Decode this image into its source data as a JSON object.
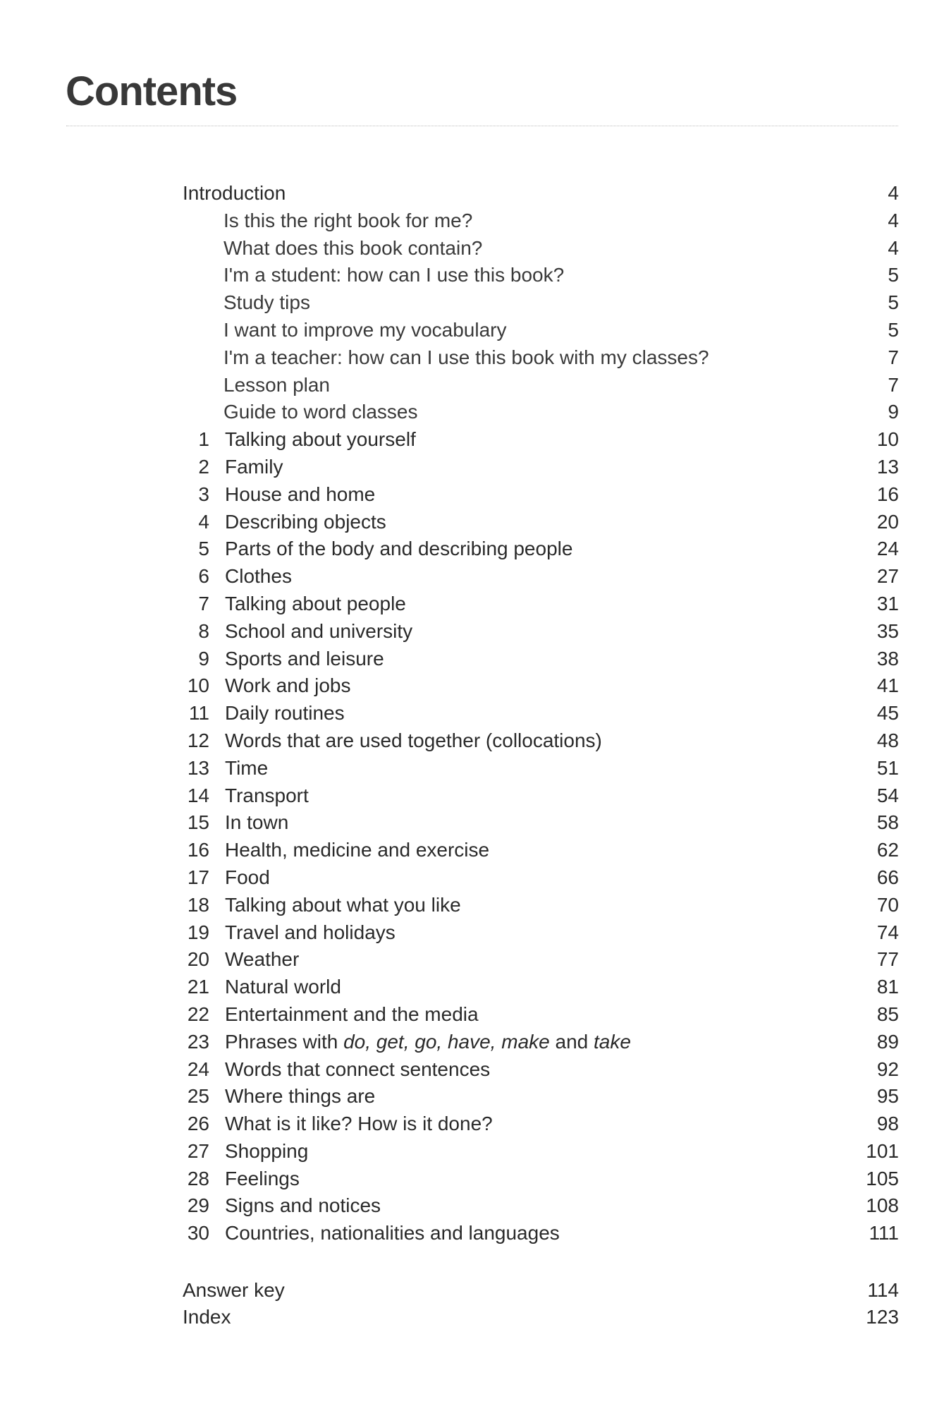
{
  "title": "Contents",
  "introduction": {
    "label": "Introduction",
    "page": "4"
  },
  "intro_items": [
    {
      "label": "Is this the right book for me?",
      "page": "4"
    },
    {
      "label": "What does this book contain?",
      "page": "4"
    },
    {
      "label": "I'm a student: how can I use this book?",
      "page": "5"
    },
    {
      "label": "Study tips",
      "page": "5"
    },
    {
      "label": "I want to improve my vocabulary",
      "page": "5"
    },
    {
      "label": "I'm a teacher: how can I use this book with my classes?",
      "page": "7"
    },
    {
      "label": "Lesson plan",
      "page": "7"
    },
    {
      "label": "Guide to word classes",
      "page": "9"
    }
  ],
  "units": [
    {
      "num": "1",
      "label": "Talking about yourself",
      "page": "10"
    },
    {
      "num": "2",
      "label": "Family",
      "page": "13"
    },
    {
      "num": "3",
      "label": "House and home",
      "page": "16"
    },
    {
      "num": "4",
      "label": "Describing objects",
      "page": "20"
    },
    {
      "num": "5",
      "label": "Parts of the body and describing people",
      "page": "24"
    },
    {
      "num": "6",
      "label": "Clothes",
      "page": "27"
    },
    {
      "num": "7",
      "label": "Talking about people",
      "page": "31"
    },
    {
      "num": "8",
      "label": "School and university",
      "page": "35"
    },
    {
      "num": "9",
      "label": "Sports and leisure",
      "page": "38"
    },
    {
      "num": "10",
      "label": "Work and jobs",
      "page": "41"
    },
    {
      "num": "11",
      "label": "Daily routines",
      "page": "45"
    },
    {
      "num": "12",
      "label": "Words that are used together (collocations)",
      "page": "48"
    },
    {
      "num": "13",
      "label": "Time",
      "page": "51"
    },
    {
      "num": "14",
      "label": "Transport",
      "page": "54"
    },
    {
      "num": "15",
      "label": "In town",
      "page": "58"
    },
    {
      "num": "16",
      "label": "Health, medicine and exercise",
      "page": "62"
    },
    {
      "num": "17",
      "label": "Food",
      "page": "66"
    },
    {
      "num": "18",
      "label": "Talking about what you like",
      "page": "70"
    },
    {
      "num": "19",
      "label": "Travel and holidays",
      "page": "74"
    },
    {
      "num": "20",
      "label": "Weather",
      "page": "77"
    },
    {
      "num": "21",
      "label": "Natural world",
      "page": "81"
    },
    {
      "num": "22",
      "label": "Entertainment and the media",
      "page": "85"
    },
    {
      "num": "23",
      "label": "Phrases with do, get, go, have, make and take",
      "page": "89",
      "segments": [
        {
          "t": "Phrases with ",
          "i": false
        },
        {
          "t": "do, get, go, have, make",
          "i": true
        },
        {
          "t": " and ",
          "i": false
        },
        {
          "t": "take",
          "i": true
        }
      ]
    },
    {
      "num": "24",
      "label": "Words that connect sentences",
      "page": "92"
    },
    {
      "num": "25",
      "label": "Where things are",
      "page": "95"
    },
    {
      "num": "26",
      "label": "What is it like? How is it done?",
      "page": "98"
    },
    {
      "num": "27",
      "label": "Shopping",
      "page": "101"
    },
    {
      "num": "28",
      "label": "Feelings",
      "page": "105"
    },
    {
      "num": "29",
      "label": "Signs and notices",
      "page": "108"
    },
    {
      "num": "30",
      "label": "Countries, nationalities and languages",
      "page": "111"
    }
  ],
  "back_matter": [
    {
      "label": "Answer key",
      "page": "114"
    },
    {
      "label": "Index",
      "page": "123"
    }
  ]
}
